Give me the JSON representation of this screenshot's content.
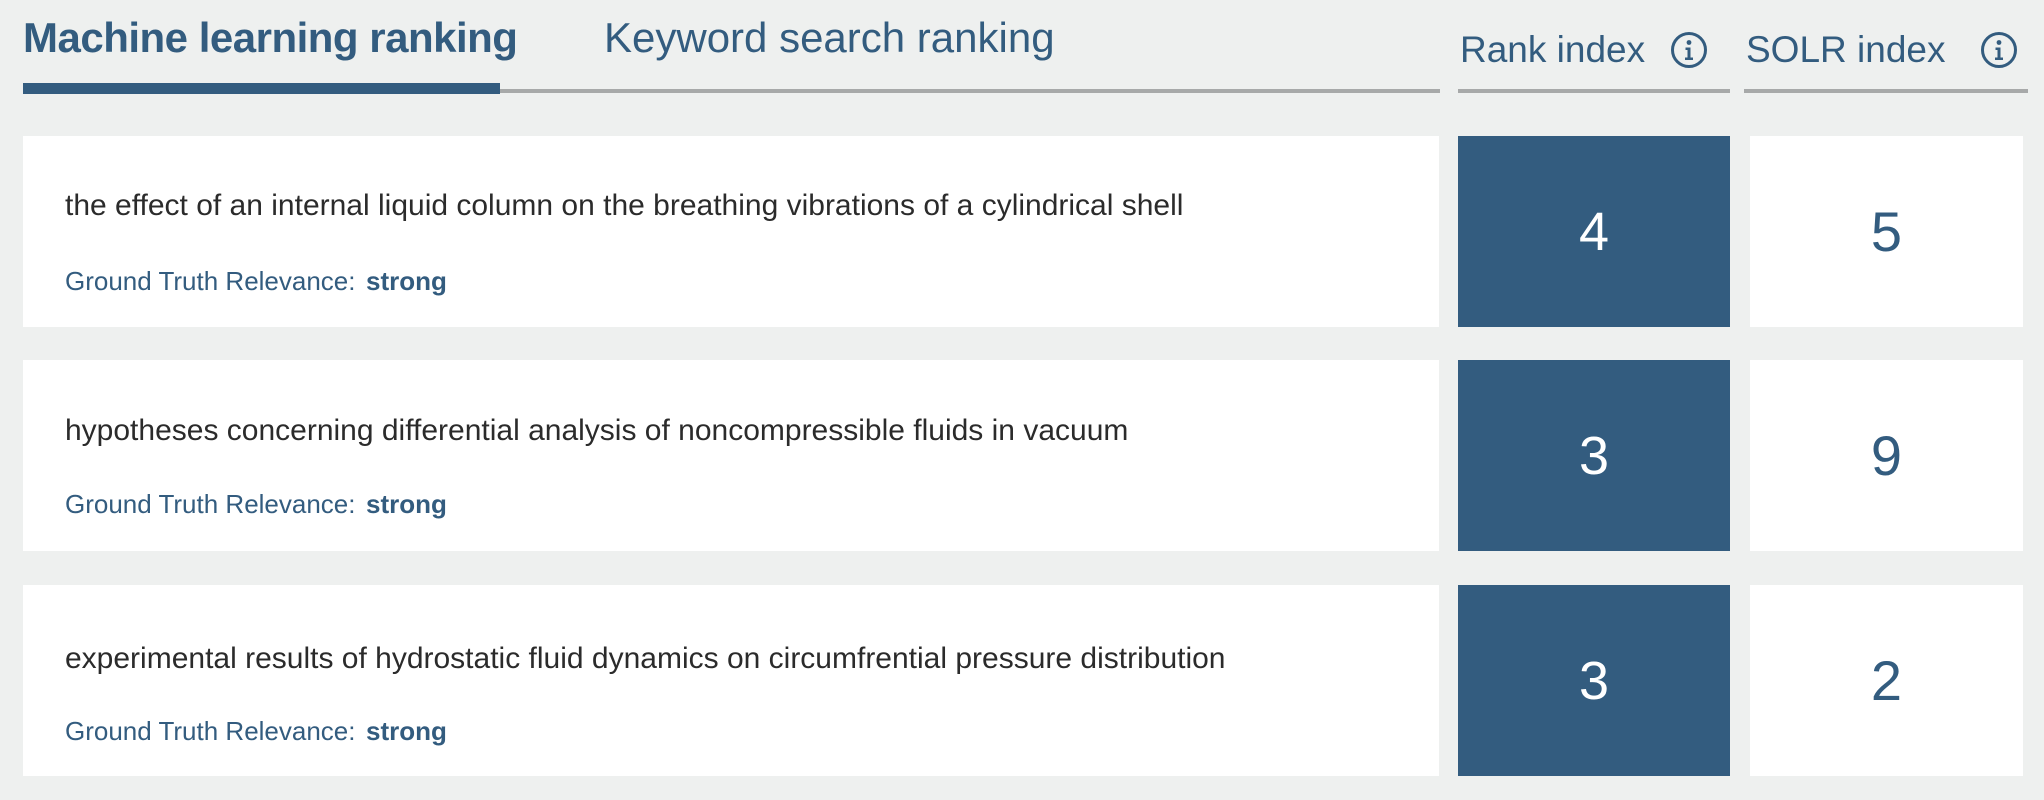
{
  "tabs": {
    "machine_learning": "Machine learning ranking",
    "keyword_search": "Keyword search ranking"
  },
  "columns": {
    "rank_index": "Rank index",
    "solr_index": "SOLR index"
  },
  "rows": [
    {
      "title": "the effect of an internal liquid column on the breathing vibrations of a cylindrical shell",
      "relevance_label": "Ground Truth Relevance:",
      "relevance": "strong",
      "rank_index": "4",
      "solr_index": "5"
    },
    {
      "title": "hypotheses concerning differential analysis of noncompressible fluids in vacuum",
      "relevance_label": "Ground Truth Relevance:",
      "relevance": "strong",
      "rank_index": "3",
      "solr_index": "9"
    },
    {
      "title": "experimental results of hydrostatic fluid dynamics on circumfrential pressure distribution",
      "relevance_label": "Ground Truth Relevance:",
      "relevance": "strong",
      "rank_index": "3",
      "solr_index": "2"
    }
  ],
  "icons": {
    "info": "info-icon"
  },
  "colors": {
    "accent": "#335c7f",
    "background": "#eef0ef",
    "card": "#ffffff",
    "divider": "#a7a9a9",
    "text": "#2b2b2b"
  }
}
